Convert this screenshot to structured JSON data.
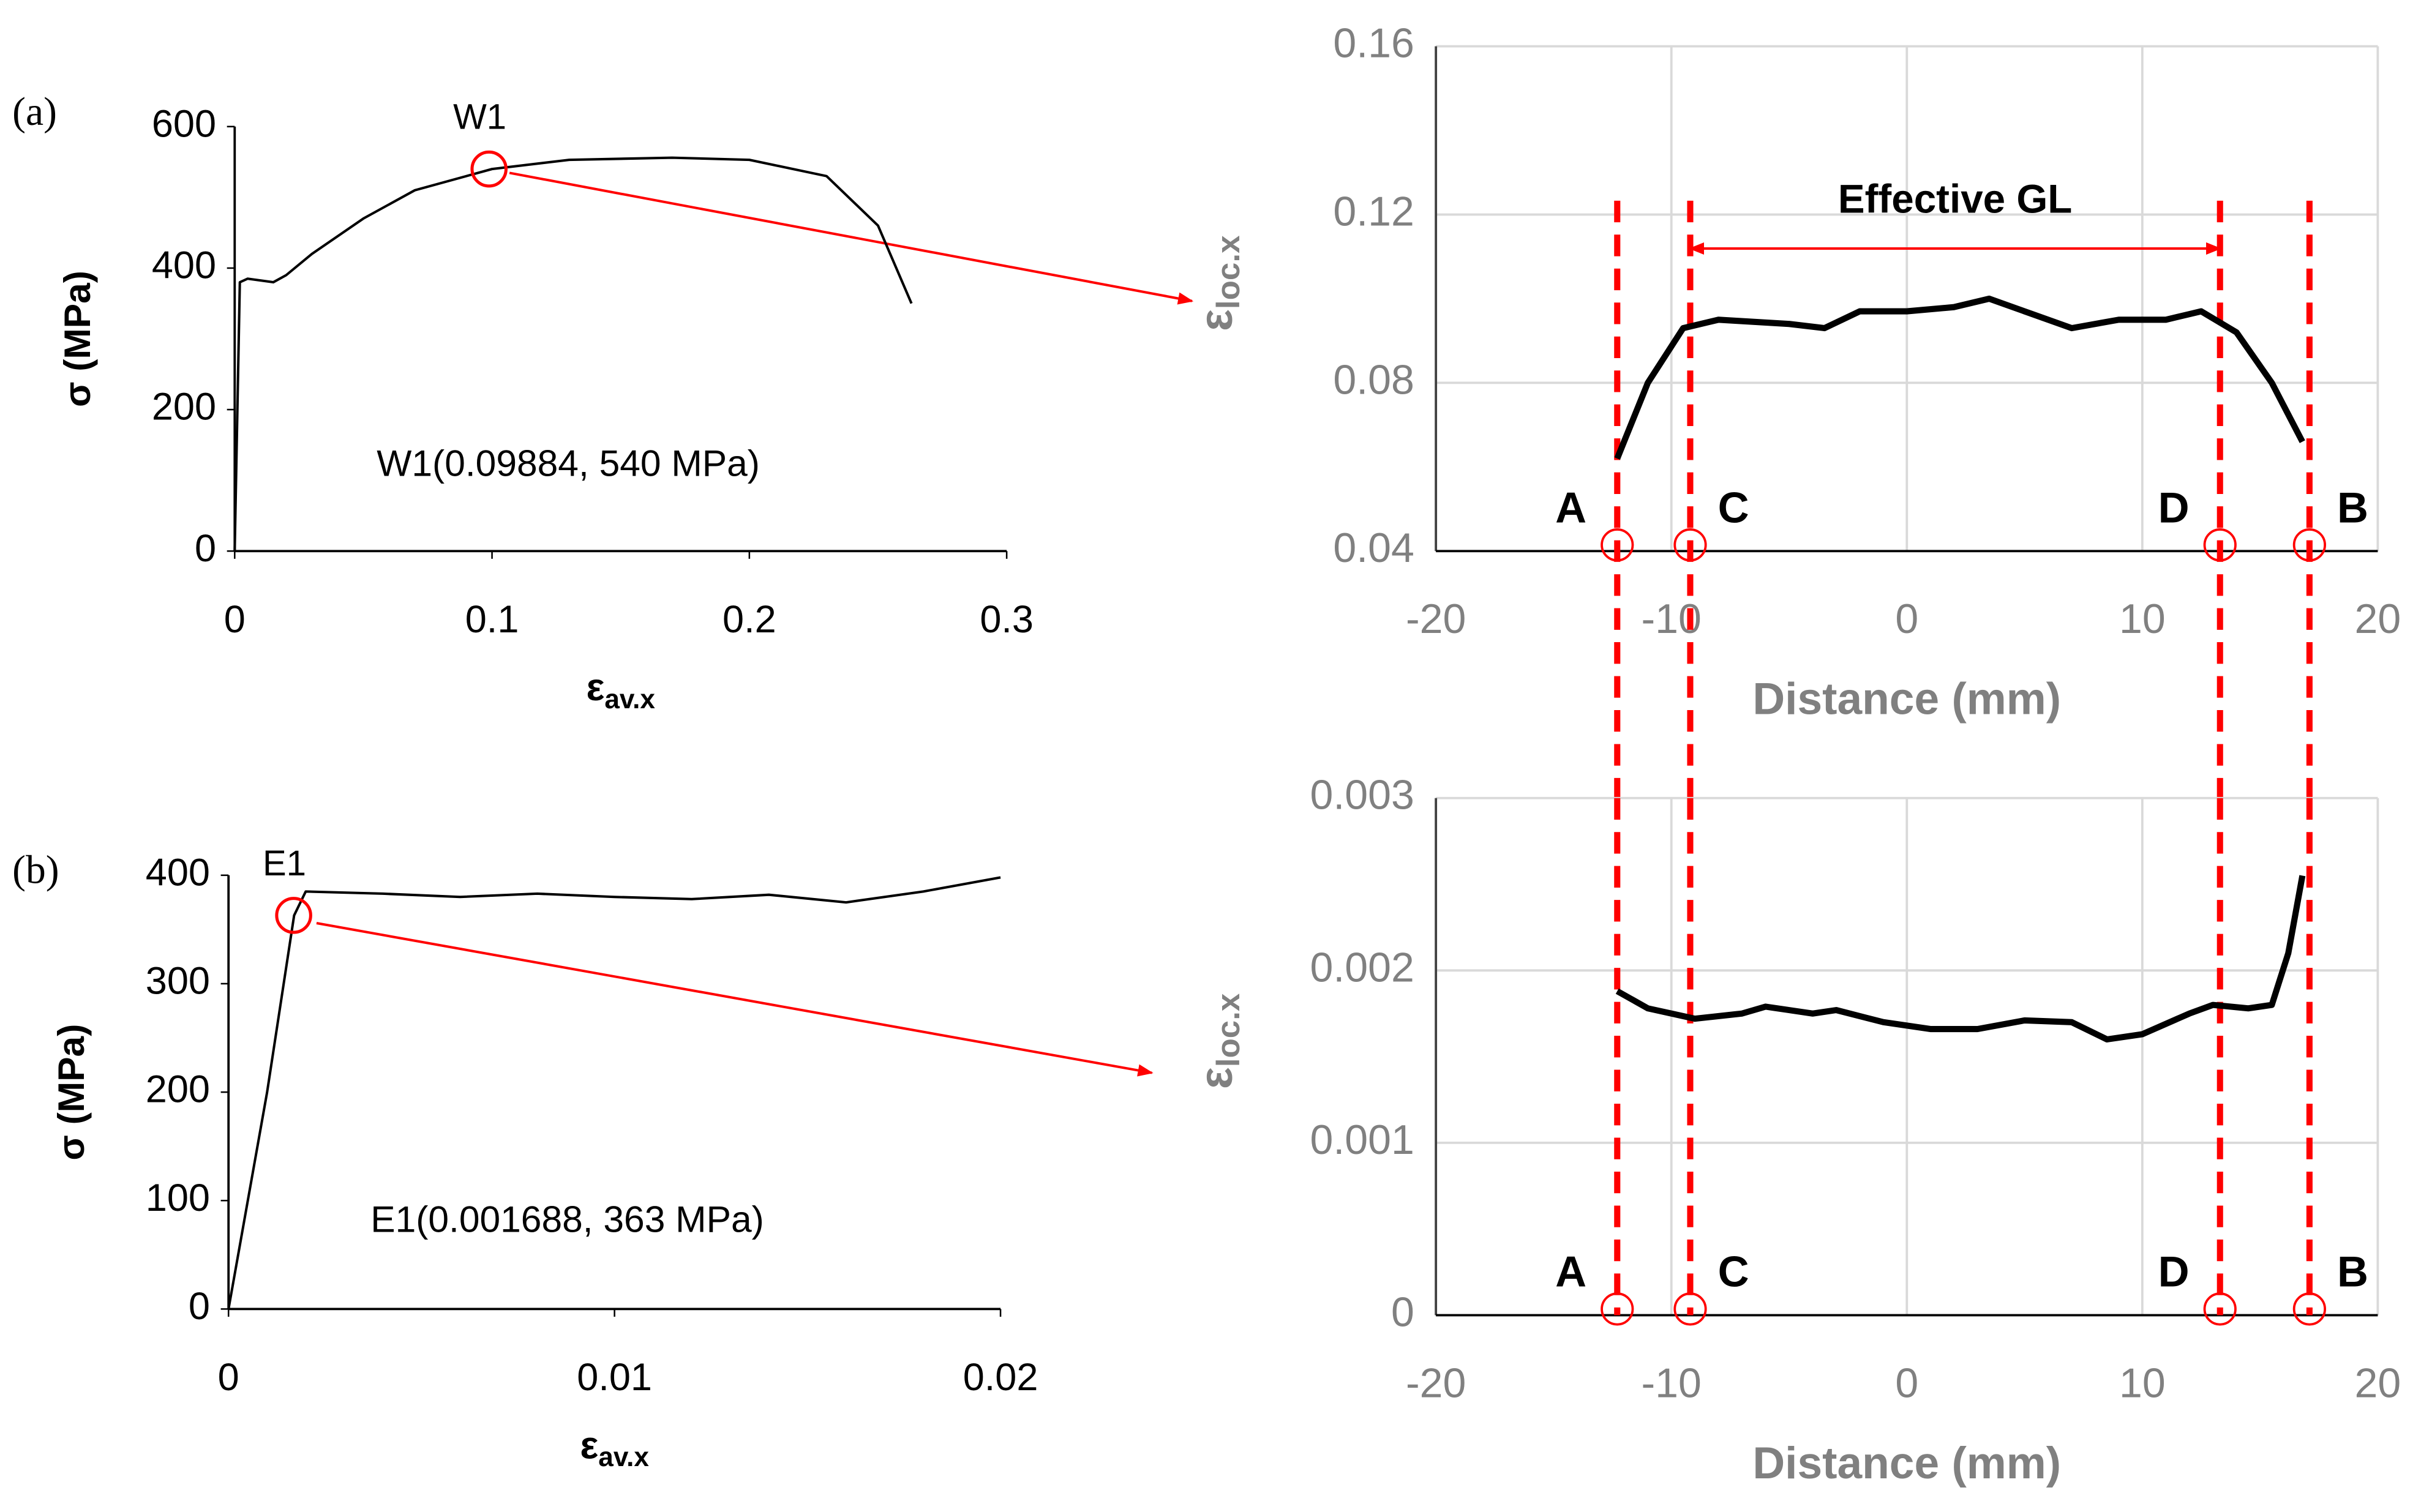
{
  "chart_data": [
    {
      "type": "line",
      "panel_label": "(a)",
      "ylabel": "σ (MPa)",
      "xlabel": {
        "symbol": "ε",
        "subscript": "av.x"
      },
      "xlim": [
        0,
        0.3
      ],
      "xticks": [
        0,
        0.1,
        0.2,
        0.3
      ],
      "ylim": [
        0,
        600
      ],
      "yticks": [
        0,
        200,
        400,
        600
      ],
      "grid": false,
      "color": "#000000",
      "x": [
        0,
        0.002,
        0.005,
        0.015,
        0.02,
        0.03,
        0.05,
        0.07,
        0.1,
        0.13,
        0.17,
        0.2,
        0.23,
        0.25,
        0.263
      ],
      "values": [
        0,
        380,
        385,
        380,
        390,
        420,
        470,
        510,
        540,
        553,
        556,
        553,
        530,
        460,
        350
      ],
      "highlight": {
        "name": "W1",
        "x": 0.09884,
        "y": 540,
        "color": "#ff0000"
      },
      "annotation": "W1(0.09884, 540 MPa)"
    },
    {
      "type": "line",
      "panel_label": "(b)",
      "ylabel": "σ (MPa)",
      "xlabel": {
        "symbol": "ε",
        "subscript": "av.x"
      },
      "xlim": [
        0,
        0.02
      ],
      "xticks": [
        0,
        0.01,
        0.02
      ],
      "ylim": [
        0,
        400
      ],
      "yticks": [
        0,
        100,
        200,
        300,
        400
      ],
      "grid": false,
      "color": "#000000",
      "x": [
        0,
        0.001,
        0.0017,
        0.002,
        0.004,
        0.006,
        0.008,
        0.01,
        0.012,
        0.014,
        0.016,
        0.018,
        0.02
      ],
      "values": [
        0,
        200,
        363,
        385,
        383,
        380,
        383,
        380,
        378,
        382,
        375,
        385,
        398
      ],
      "highlight": {
        "name": "E1",
        "x": 0.001688,
        "y": 363,
        "color": "#ff0000"
      },
      "annotation": "E1(0.001688, 363 MPa)"
    },
    {
      "type": "line",
      "ylabel": {
        "symbol": "ε",
        "subscript": "loc.x"
      },
      "xlabel": "Distance (mm)",
      "xlim": [
        -20,
        20
      ],
      "xticks": [
        -20,
        -10,
        0,
        10,
        20
      ],
      "ylim": [
        0.04,
        0.16
      ],
      "yticks": [
        0.04,
        0.08,
        0.12,
        0.16
      ],
      "grid": true,
      "color": "#000000",
      "x": [
        -12.3,
        -11,
        -9.5,
        -8,
        -5,
        -3.5,
        -2,
        0,
        2,
        3.5,
        5,
        7,
        9,
        11,
        12.5,
        14,
        15.5,
        16.8
      ],
      "values": [
        0.062,
        0.08,
        0.093,
        0.095,
        0.094,
        0.093,
        0.097,
        0.097,
        0.098,
        0.1,
        0.097,
        0.093,
        0.095,
        0.095,
        0.097,
        0.092,
        0.08,
        0.066
      ],
      "markers": [
        {
          "label": "A",
          "x": -12.3
        },
        {
          "label": "C",
          "x": -9.2
        },
        {
          "label": "D",
          "x": 13.3
        },
        {
          "label": "B",
          "x": 17.1
        }
      ],
      "marker_color": "#ff0000",
      "span": {
        "label": "Effective GL",
        "from": -9.2,
        "to": 13.3,
        "y": 0.12
      }
    },
    {
      "type": "line",
      "ylabel": {
        "symbol": "ε",
        "subscript": "loc.x"
      },
      "xlabel": "Distance (mm)",
      "xlim": [
        -20,
        20
      ],
      "xticks": [
        -20,
        -10,
        0,
        10,
        20
      ],
      "ylim": [
        0,
        0.003
      ],
      "yticks": [
        0,
        0.001,
        0.002,
        0.003
      ],
      "grid": true,
      "color": "#000000",
      "x": [
        -12.3,
        -11,
        -9,
        -7,
        -6,
        -4,
        -3,
        -1,
        1,
        3,
        5,
        7,
        8.5,
        10,
        12,
        13,
        14.5,
        15.5,
        16.2,
        16.8
      ],
      "values": [
        0.00188,
        0.00178,
        0.00172,
        0.00175,
        0.00179,
        0.00175,
        0.00177,
        0.0017,
        0.00166,
        0.00166,
        0.00171,
        0.0017,
        0.0016,
        0.00163,
        0.00175,
        0.0018,
        0.00178,
        0.0018,
        0.0021,
        0.00255
      ],
      "markers": [
        {
          "label": "A",
          "x": -12.3
        },
        {
          "label": "C",
          "x": -9.2
        },
        {
          "label": "D",
          "x": 13.3
        },
        {
          "label": "B",
          "x": 17.1
        }
      ],
      "marker_color": "#ff0000"
    }
  ]
}
